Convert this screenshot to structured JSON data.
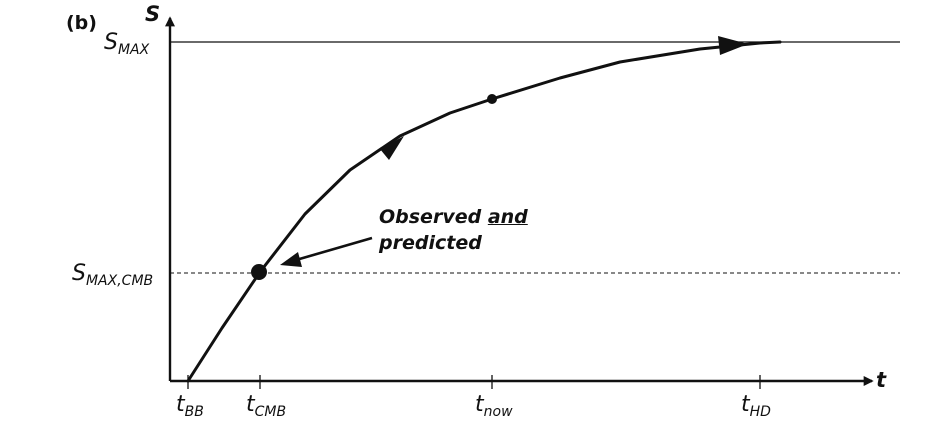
{
  "panel_label": "(b)",
  "axes": {
    "y_label": "S",
    "x_label": "t"
  },
  "y_markers": [
    {
      "id": "smax",
      "base": "S",
      "sub": "MAX",
      "style": "solid"
    },
    {
      "id": "smax_cmb",
      "base": "S",
      "sub": "MAX,CMB",
      "style": "dashed"
    }
  ],
  "x_markers": [
    {
      "id": "bb",
      "base": "t",
      "sub": "BB"
    },
    {
      "id": "cmb",
      "base": "t",
      "sub": "CMB"
    },
    {
      "id": "now",
      "base": "t",
      "sub": "now"
    },
    {
      "id": "hd",
      "base": "t",
      "sub": "HD"
    }
  ],
  "annotation": {
    "line1_prefix": "Observed ",
    "line1_emph": "and",
    "line2": "predicted"
  },
  "colors": {
    "ink": "#111111",
    "background": "#ffffff"
  }
}
